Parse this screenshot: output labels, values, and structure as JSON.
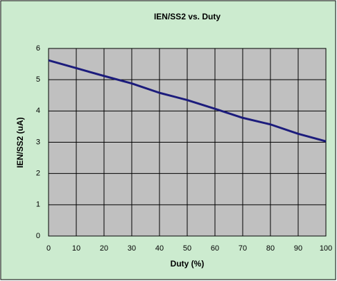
{
  "chart_data": {
    "type": "line",
    "title": "IEN/SS2 vs. Duty",
    "x_label": "Duty (%)",
    "y_label": "IEN/SS2 (uA)",
    "x": [
      0,
      10,
      20,
      30,
      40,
      50,
      60,
      70,
      80,
      90,
      100
    ],
    "series": [
      {
        "name": "IEN/SS2",
        "color": "#1c1c7c",
        "values": [
          5.62,
          5.37,
          5.12,
          4.88,
          4.58,
          4.35,
          4.07,
          3.78,
          3.57,
          3.27,
          3.03
        ]
      }
    ],
    "xlim": [
      0,
      100
    ],
    "xticks": [
      0,
      10,
      20,
      30,
      40,
      50,
      60,
      70,
      80,
      90,
      100
    ],
    "ylim": [
      0,
      6
    ],
    "yticks": [
      0,
      1,
      2,
      3,
      4,
      5,
      6
    ],
    "grid": true
  }
}
